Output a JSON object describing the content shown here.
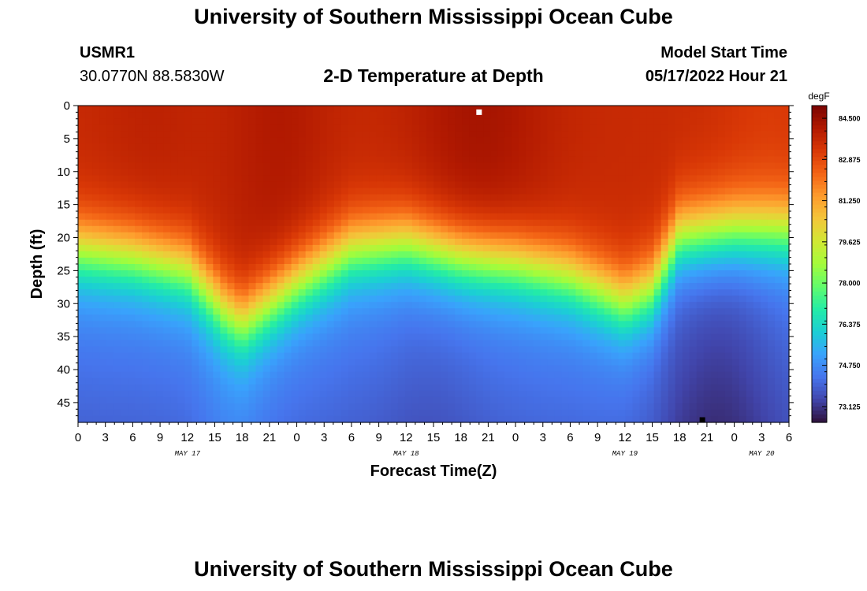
{
  "header": {
    "title": "University of Southern Mississippi Ocean Cube",
    "station_id": "USMR1",
    "station_coords": "30.0770N  88.5830W",
    "model_start_label": "Model Start Time",
    "model_start_value": "05/17/2022 Hour 21"
  },
  "footer": {
    "title": "University of Southern Mississippi Ocean Cube"
  },
  "chart_data": {
    "type": "heatmap",
    "title": "2-D Temperature at Depth",
    "xlabel": "Forecast Time(Z)",
    "ylabel": "Depth (ft)",
    "x_ticks": [
      "0",
      "3",
      "6",
      "9",
      "12",
      "15",
      "18",
      "21",
      "0",
      "3",
      "6",
      "9",
      "12",
      "15",
      "18",
      "21",
      "0",
      "3",
      "6",
      "9",
      "12",
      "15",
      "18",
      "21",
      "0",
      "3",
      "6"
    ],
    "x_range_hours": [
      0,
      78
    ],
    "day_labels": [
      {
        "label": "MAY 17",
        "hour": 12
      },
      {
        "label": "MAY 18",
        "hour": 36
      },
      {
        "label": "MAY 19",
        "hour": 60
      },
      {
        "label": "MAY 20",
        "hour": 75
      }
    ],
    "y_ticks": [
      "0",
      "5",
      "10",
      "15",
      "20",
      "25",
      "30",
      "35",
      "40",
      "45"
    ],
    "y_range_ft": [
      0,
      48
    ],
    "colorbar": {
      "unit": "degF",
      "ticks": [
        "84.500",
        "82.875",
        "81.250",
        "79.625",
        "78.000",
        "76.375",
        "74.750",
        "73.125"
      ],
      "range": [
        72.5,
        85.0
      ]
    },
    "thermocline_depth_ft": {
      "hours": [
        0,
        6,
        12,
        16,
        18,
        24,
        30,
        36,
        42,
        48,
        54,
        60,
        63,
        66,
        72,
        78
      ],
      "depths": [
        22,
        23,
        25,
        31,
        33,
        27,
        22,
        21,
        23,
        24,
        26,
        30,
        28,
        20,
        19,
        19
      ]
    },
    "markers": [
      {
        "label": "max",
        "hour": 44,
        "depth_ft": 1
      },
      {
        "label": "min",
        "hour": 68.5,
        "depth_ft": 48
      }
    ],
    "colormap": [
      "#30123b",
      "#4145ab",
      "#4675ed",
      "#39a2fc",
      "#1bcfd4",
      "#24eca6",
      "#61fc6c",
      "#a4fc3b",
      "#d1e834",
      "#f3c63a",
      "#fe9b2d",
      "#f36315",
      "#d93806",
      "#b11901",
      "#7a0402"
    ]
  }
}
